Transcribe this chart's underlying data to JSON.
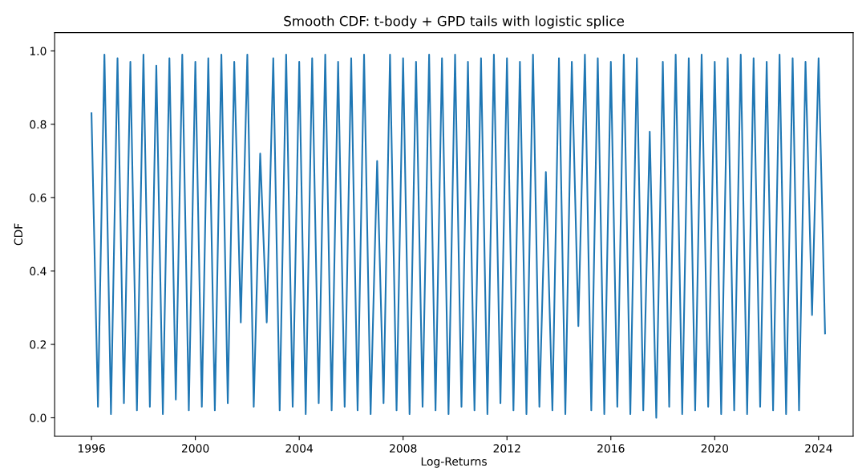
{
  "chart_data": {
    "type": "line",
    "title": "Smooth CDF: t-body + GPD tails with logistic splice",
    "xlabel": "Log-Returns",
    "ylabel": "CDF",
    "x": [
      "1996-01",
      "1996-04",
      "1996-07",
      "1996-10",
      "1997-01",
      "1997-04",
      "1997-07",
      "1997-10",
      "1998-01",
      "1998-04",
      "1998-07",
      "1998-10",
      "1999-01",
      "1999-04",
      "1999-07",
      "1999-10",
      "2000-01",
      "2000-04",
      "2000-07",
      "2000-10",
      "2001-01",
      "2001-04",
      "2001-07",
      "2001-10",
      "2002-01",
      "2002-04",
      "2002-07",
      "2002-10",
      "2003-01",
      "2003-04",
      "2003-07",
      "2003-10",
      "2004-01",
      "2004-04",
      "2004-07",
      "2004-10",
      "2005-01",
      "2005-04",
      "2005-07",
      "2005-10",
      "2006-01",
      "2006-04",
      "2006-07",
      "2006-10",
      "2007-01",
      "2007-04",
      "2007-07",
      "2007-10",
      "2008-01",
      "2008-04",
      "2008-07",
      "2008-10",
      "2009-01",
      "2009-04",
      "2009-07",
      "2009-10",
      "2010-01",
      "2010-04",
      "2010-07",
      "2010-10",
      "2011-01",
      "2011-04",
      "2011-07",
      "2011-10",
      "2012-01",
      "2012-04",
      "2012-07",
      "2012-10",
      "2013-01",
      "2013-04",
      "2013-07",
      "2013-10",
      "2014-01",
      "2014-04",
      "2014-07",
      "2014-10",
      "2015-01",
      "2015-04",
      "2015-07",
      "2015-10",
      "2016-01",
      "2016-04",
      "2016-07",
      "2016-10",
      "2017-01",
      "2017-04",
      "2017-07",
      "2017-10",
      "2018-01",
      "2018-04",
      "2018-07",
      "2018-10",
      "2019-01",
      "2019-04",
      "2019-07",
      "2019-10",
      "2020-01",
      "2020-04",
      "2020-07",
      "2020-10",
      "2021-01",
      "2021-04",
      "2021-07",
      "2021-10",
      "2022-01",
      "2022-04",
      "2022-07",
      "2022-10",
      "2023-01",
      "2023-04",
      "2023-07",
      "2023-10",
      "2024-01",
      "2024-04"
    ],
    "series": [
      {
        "color": "#1f77b4",
        "values": [
          0.83,
          0.03,
          0.99,
          0.01,
          0.98,
          0.04,
          0.97,
          0.02,
          0.99,
          0.03,
          0.96,
          0.01,
          0.98,
          0.05,
          0.99,
          0.02,
          0.97,
          0.03,
          0.98,
          0.02,
          0.99,
          0.04,
          0.97,
          0.26,
          0.99,
          0.03,
          0.72,
          0.26,
          0.98,
          0.02,
          0.99,
          0.03,
          0.97,
          0.01,
          0.98,
          0.04,
          0.99,
          0.02,
          0.97,
          0.03,
          0.98,
          0.02,
          0.99,
          0.01,
          0.7,
          0.04,
          0.99,
          0.02,
          0.98,
          0.01,
          0.97,
          0.03,
          0.99,
          0.02,
          0.98,
          0.01,
          0.99,
          0.03,
          0.97,
          0.02,
          0.98,
          0.01,
          0.99,
          0.04,
          0.98,
          0.02,
          0.97,
          0.01,
          0.99,
          0.03,
          0.67,
          0.02,
          0.98,
          0.01,
          0.97,
          0.25,
          0.99,
          0.02,
          0.98,
          0.01,
          0.97,
          0.03,
          0.99,
          0.01,
          0.98,
          0.02,
          0.78,
          0.0,
          0.97,
          0.03,
          0.99,
          0.01,
          0.98,
          0.02,
          0.99,
          0.03,
          0.97,
          0.01,
          0.98,
          0.02,
          0.99,
          0.01,
          0.98,
          0.03,
          0.97,
          0.02,
          0.99,
          0.01,
          0.98,
          0.02,
          0.97,
          0.28,
          0.98,
          0.23
        ]
      }
    ],
    "xlim": [
      "1994-08",
      "2025-05"
    ],
    "xticks": [
      {
        "value": "1996-01-01",
        "label": "1996"
      },
      {
        "value": "2000-01-01",
        "label": "2000"
      },
      {
        "value": "2004-01-01",
        "label": "2004"
      },
      {
        "value": "2008-01-01",
        "label": "2008"
      },
      {
        "value": "2012-01-01",
        "label": "2012"
      },
      {
        "value": "2016-01-01",
        "label": "2016"
      },
      {
        "value": "2020-01-01",
        "label": "2020"
      },
      {
        "value": "2024-01-01",
        "label": "2024"
      }
    ],
    "ylim": [
      -0.05,
      1.05
    ],
    "yticks": [
      {
        "value": 0,
        "label": "0.0"
      },
      {
        "value": 0.2,
        "label": "0.2"
      },
      {
        "value": 0.4,
        "label": "0.4"
      },
      {
        "value": 0.6,
        "label": "0.6"
      },
      {
        "value": 0.8,
        "label": "0.8"
      },
      {
        "value": 1.0,
        "label": "1.0"
      }
    ],
    "grid": false,
    "legend": false
  }
}
